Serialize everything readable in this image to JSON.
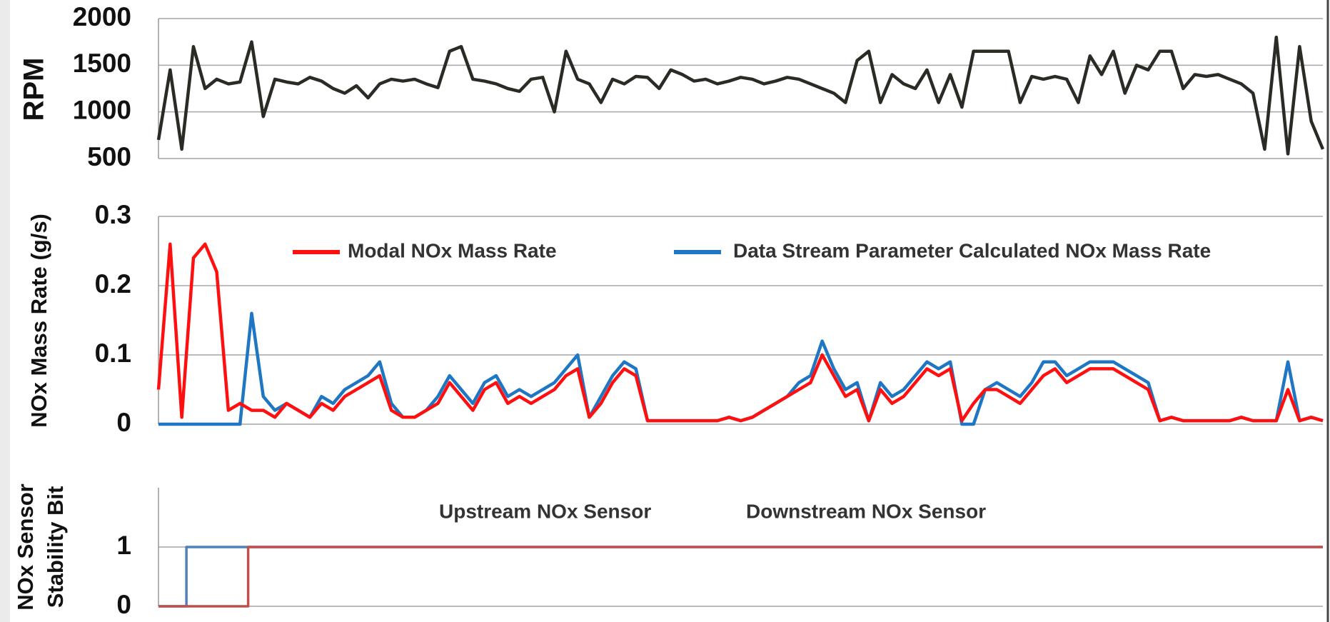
{
  "chart_data": [
    {
      "type": "line",
      "ylabel": "RPM",
      "ylim": [
        500,
        2000
      ],
      "yticks": [
        500,
        1000,
        1500,
        2000
      ],
      "xlim": [
        0,
        1000
      ],
      "grid": true,
      "x": [
        0,
        10,
        20,
        30,
        40,
        50,
        60,
        70,
        80,
        90,
        100,
        110,
        120,
        130,
        140,
        150,
        160,
        170,
        180,
        190,
        200,
        210,
        220,
        230,
        240,
        250,
        260,
        270,
        280,
        290,
        300,
        310,
        320,
        330,
        340,
        350,
        360,
        370,
        380,
        390,
        400,
        410,
        420,
        430,
        440,
        450,
        460,
        470,
        480,
        490,
        500,
        510,
        520,
        530,
        540,
        550,
        560,
        570,
        580,
        590,
        600,
        610,
        620,
        630,
        640,
        650,
        660,
        670,
        680,
        690,
        700,
        710,
        720,
        730,
        740,
        750,
        760,
        770,
        780,
        790,
        800,
        810,
        820,
        830,
        840,
        850,
        860,
        870,
        880,
        890,
        900,
        910,
        920,
        930,
        940,
        950,
        960,
        970,
        980,
        990,
        1000
      ],
      "series": [
        {
          "color": "#2b2b26",
          "values": [
            700,
            1450,
            600,
            1700,
            1250,
            1350,
            1300,
            1320,
            1750,
            950,
            1350,
            1320,
            1300,
            1370,
            1330,
            1250,
            1200,
            1280,
            1150,
            1300,
            1350,
            1330,
            1350,
            1300,
            1260,
            1650,
            1700,
            1350,
            1330,
            1300,
            1250,
            1220,
            1350,
            1370,
            1000,
            1650,
            1350,
            1300,
            1100,
            1350,
            1300,
            1380,
            1370,
            1250,
            1450,
            1400,
            1330,
            1350,
            1300,
            1330,
            1370,
            1350,
            1300,
            1330,
            1370,
            1350,
            1300,
            1250,
            1200,
            1100,
            1550,
            1650,
            1100,
            1400,
            1300,
            1250,
            1450,
            1100,
            1400,
            1050,
            1650,
            1650,
            1650,
            1650,
            1100,
            1380,
            1350,
            1380,
            1350,
            1100,
            1600,
            1400,
            1650,
            1200,
            1500,
            1450,
            1650,
            1650,
            1250,
            1400,
            1380,
            1400,
            1350,
            1300,
            1200,
            600,
            1800,
            550,
            1700,
            900,
            600
          ]
        }
      ]
    },
    {
      "type": "line",
      "ylabel": "NOx Mass Rate (g/s)",
      "ylim": [
        0,
        0.3
      ],
      "yticks": [
        0,
        0.1,
        0.2,
        0.3
      ],
      "xlim": [
        0,
        1000
      ],
      "grid": true,
      "x": [
        0,
        10,
        20,
        30,
        40,
        50,
        60,
        70,
        80,
        90,
        100,
        110,
        120,
        130,
        140,
        150,
        160,
        170,
        180,
        190,
        200,
        210,
        220,
        230,
        240,
        250,
        260,
        270,
        280,
        290,
        300,
        310,
        320,
        330,
        340,
        350,
        360,
        370,
        380,
        390,
        400,
        410,
        420,
        430,
        440,
        450,
        460,
        470,
        480,
        490,
        500,
        510,
        520,
        530,
        540,
        550,
        560,
        570,
        580,
        590,
        600,
        610,
        620,
        630,
        640,
        650,
        660,
        670,
        680,
        690,
        700,
        710,
        720,
        730,
        740,
        750,
        760,
        770,
        780,
        790,
        800,
        810,
        820,
        830,
        840,
        850,
        860,
        870,
        880,
        890,
        900,
        910,
        920,
        930,
        940,
        950,
        960,
        970,
        980,
        990,
        1000
      ],
      "series": [
        {
          "name": "Data Stream Parameter Calculated NOx Mass Rate",
          "color": "#1f77c4",
          "values": [
            0,
            0,
            0,
            0,
            0,
            0,
            0,
            0,
            0.16,
            0.04,
            0.02,
            0.03,
            0.02,
            0.01,
            0.04,
            0.03,
            0.05,
            0.06,
            0.07,
            0.09,
            0.03,
            0.01,
            0.01,
            0.02,
            0.04,
            0.07,
            0.05,
            0.03,
            0.06,
            0.07,
            0.04,
            0.05,
            0.04,
            0.05,
            0.06,
            0.08,
            0.1,
            0.01,
            0.04,
            0.07,
            0.09,
            0.08,
            0.005,
            0.005,
            0.005,
            0.005,
            0.005,
            0.005,
            0.005,
            0.01,
            0.005,
            0.01,
            0.02,
            0.03,
            0.04,
            0.06,
            0.07,
            0.12,
            0.08,
            0.05,
            0.06,
            0.005,
            0.06,
            0.04,
            0.05,
            0.07,
            0.09,
            0.08,
            0.09,
            0,
            0,
            0.05,
            0.06,
            0.05,
            0.04,
            0.06,
            0.09,
            0.09,
            0.07,
            0.08,
            0.09,
            0.09,
            0.09,
            0.08,
            0.07,
            0.06,
            0.005,
            0.01,
            0.005,
            0.005,
            0.005,
            0.005,
            0.005,
            0.01,
            0.005,
            0.005,
            0.005,
            0.09,
            0.005,
            0.01,
            0.005
          ]
        },
        {
          "name": "Modal NOx Mass Rate",
          "color": "#ff1010",
          "values": [
            0.05,
            0.26,
            0.01,
            0.24,
            0.26,
            0.22,
            0.02,
            0.03,
            0.02,
            0.02,
            0.01,
            0.03,
            0.02,
            0.01,
            0.03,
            0.02,
            0.04,
            0.05,
            0.06,
            0.07,
            0.02,
            0.01,
            0.01,
            0.02,
            0.03,
            0.06,
            0.04,
            0.02,
            0.05,
            0.06,
            0.03,
            0.04,
            0.03,
            0.04,
            0.05,
            0.07,
            0.08,
            0.01,
            0.03,
            0.06,
            0.08,
            0.07,
            0.005,
            0.005,
            0.005,
            0.005,
            0.005,
            0.005,
            0.005,
            0.01,
            0.005,
            0.01,
            0.02,
            0.03,
            0.04,
            0.05,
            0.06,
            0.1,
            0.07,
            0.04,
            0.05,
            0.005,
            0.05,
            0.03,
            0.04,
            0.06,
            0.08,
            0.07,
            0.08,
            0.005,
            0.03,
            0.05,
            0.05,
            0.04,
            0.03,
            0.05,
            0.07,
            0.08,
            0.06,
            0.07,
            0.08,
            0.08,
            0.08,
            0.07,
            0.06,
            0.05,
            0.005,
            0.01,
            0.005,
            0.005,
            0.005,
            0.005,
            0.005,
            0.01,
            0.005,
            0.005,
            0.005,
            0.05,
            0.005,
            0.01,
            0.005
          ]
        }
      ]
    },
    {
      "type": "step",
      "ylabel": [
        "NOx Sensor",
        "Stability Bit"
      ],
      "ylim": [
        0,
        2
      ],
      "yticks": [
        0,
        1
      ],
      "xlim": [
        0,
        1000
      ],
      "grid": true,
      "x": [
        0,
        24,
        77,
        1000
      ],
      "series": [
        {
          "name": "Upstream NOx Sensor",
          "color": "#4f81bd",
          "values": [
            0,
            1,
            1,
            1
          ]
        },
        {
          "name": "Downstream NOx Sensor",
          "color": "#c0504d",
          "values": [
            0,
            0,
            1,
            1
          ]
        }
      ]
    }
  ]
}
